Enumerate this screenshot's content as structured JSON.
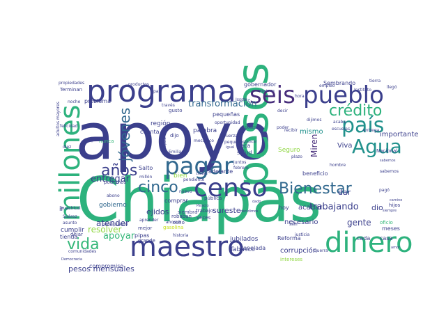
{
  "palette": {
    "background": "#ffffff",
    "dark_purple": "#472d7b",
    "indigo": "#3b3f8c",
    "blue": "#31688e",
    "teal": "#21918c",
    "green": "#35b779",
    "sea_green": "#2db27d",
    "lime": "#90d743",
    "yellow": "#c8e020"
  },
  "words": [
    {
      "text": "apoyo",
      "color": "#3b3f8c"
    },
    {
      "text": "Chiapas",
      "color": "#2db27d"
    },
    {
      "text": "programa",
      "color": "#3b3f8c"
    },
    {
      "text": "pesos",
      "color": "#2db27d"
    },
    {
      "text": "seis",
      "color": "#472d7b"
    },
    {
      "text": "pueblo",
      "color": "#3b3f8c"
    },
    {
      "text": "millones",
      "color": "#2db27d"
    },
    {
      "text": "pagar",
      "color": "#31688e"
    },
    {
      "text": "censo",
      "color": "#3b3f8c"
    },
    {
      "text": "maestro",
      "color": "#3b3f8c"
    },
    {
      "text": "dinero",
      "color": "#2db27d"
    },
    {
      "text": "país",
      "color": "#21918c"
    },
    {
      "text": "Agua",
      "color": "#21918c"
    },
    {
      "text": "crédito",
      "color": "#2db27d"
    },
    {
      "text": "Bienestar",
      "color": "#31688e"
    },
    {
      "text": "cinco",
      "color": "#31688e"
    },
    {
      "text": "años",
      "color": "#3b3f8c"
    },
    {
      "text": "jóvenes",
      "color": "#31688e"
    },
    {
      "text": "vida",
      "color": "#35b779"
    },
    {
      "text": "trabajando",
      "color": "#3b3f8c"
    },
    {
      "text": "transformación",
      "color": "#31688e"
    },
    {
      "text": "entregar",
      "color": "#3b3f8c"
    },
    {
      "text": "atender",
      "color": "#3b3f8c"
    },
    {
      "text": "apoyar",
      "color": "#35b779"
    },
    {
      "text": "resolver",
      "color": "#90d743"
    },
    {
      "text": "pesos mensuales",
      "color": "#3b3f8c"
    },
    {
      "text": "sureste",
      "color": "#3b3f8c"
    },
    {
      "text": "ejidos",
      "color": "#3b3f8c"
    },
    {
      "text": "gente",
      "color": "#3b3f8c"
    },
    {
      "text": "Miren",
      "color": "#472d7b"
    },
    {
      "text": "mismo",
      "color": "#21918c"
    },
    {
      "text": "dio",
      "color": "#3b3f8c"
    },
    {
      "text": "importante",
      "color": "#3b3f8c"
    },
    {
      "text": "Viva",
      "color": "#3b3f8c"
    },
    {
      "text": "dar",
      "color": "#3b3f8c"
    },
    {
      "text": "acabar",
      "color": "#3b3f8c"
    },
    {
      "text": "corrupción",
      "color": "#3b3f8c"
    },
    {
      "text": "necesario",
      "color": "#3b3f8c"
    },
    {
      "text": "tonelada",
      "color": "#3b3f8c"
    },
    {
      "text": "jubilados",
      "color": "#3b3f8c"
    },
    {
      "text": "Tabasco",
      "color": "#3b3f8c"
    },
    {
      "text": "región",
      "color": "#3b3f8c"
    },
    {
      "text": "palabra",
      "color": "#3b3f8c"
    },
    {
      "text": "cuenta",
      "color": "#3b3f8c"
    },
    {
      "text": "Salto",
      "color": "#3b3f8c"
    },
    {
      "text": "gobierno",
      "color": "#31688e"
    },
    {
      "text": "cumplir",
      "color": "#3b3f8c"
    },
    {
      "text": "tienda",
      "color": "#3b3f8c"
    },
    {
      "text": "compromiso",
      "color": "#3b3f8c"
    },
    {
      "text": "podemos",
      "color": "#3b3f8c"
    },
    {
      "text": "pipas",
      "color": "#3b3f8c"
    },
    {
      "text": "bien",
      "color": "#90d743"
    },
    {
      "text": "adelante",
      "color": "#3b3f8c"
    },
    {
      "text": "Seguro",
      "color": "#90d743"
    },
    {
      "text": "beca",
      "color": "#3b3f8c"
    },
    {
      "text": "salud",
      "color": "#3b3f8c"
    },
    {
      "text": "beneficio",
      "color": "#3b3f8c"
    },
    {
      "text": "gobernador",
      "color": "#3b3f8c"
    },
    {
      "text": "Sembrando",
      "color": "#3b3f8c"
    },
    {
      "text": "problema",
      "color": "#3b3f8c"
    },
    {
      "text": "pequeñas",
      "color": "#3b3f8c"
    },
    {
      "text": "Reforma",
      "color": "#3b3f8c"
    },
    {
      "text": "cada",
      "color": "#3b3f8c"
    },
    {
      "text": "casa",
      "color": "#3b3f8c"
    },
    {
      "text": "meses",
      "color": "#3b3f8c"
    },
    {
      "text": "hoy",
      "color": "#3b3f8c"
    },
    {
      "text": "comprar",
      "color": "#3b3f8c"
    },
    {
      "text": "trabajo",
      "color": "#3b3f8c"
    },
    {
      "text": "ocho",
      "color": "#3b3f8c"
    },
    {
      "text": "robaban",
      "color": "#3b3f8c"
    },
    {
      "text": "gasolina",
      "color": "#c8e020"
    },
    {
      "text": "mejor",
      "color": "#3b3f8c"
    },
    {
      "text": "grande",
      "color": "#3b3f8c"
    },
    {
      "text": "dejar",
      "color": "#3b3f8c"
    },
    {
      "text": "huachicol",
      "color": "#3b3f8c"
    },
    {
      "text": "nunca",
      "color": "#35b779"
    },
    {
      "text": "Terminan",
      "color": "#3b3f8c"
    },
    {
      "text": "propiedades",
      "color": "#3b3f8c"
    },
    {
      "text": "adultos mayores",
      "color": "#3b3f8c"
    },
    {
      "text": "felicidad",
      "color": "#3b3f8c"
    },
    {
      "text": "diez",
      "color": "#3b3f8c"
    },
    {
      "text": "Nacional",
      "color": "#3b3f8c"
    },
    {
      "text": "hijos",
      "color": "#3b3f8c"
    },
    {
      "text": "oficio",
      "color": "#35b779"
    },
    {
      "text": "hombre",
      "color": "#3b3f8c"
    },
    {
      "text": "intereses",
      "color": "#90d743"
    },
    {
      "text": "amor",
      "color": "#3b3f8c"
    },
    {
      "text": "sabemos",
      "color": "#3b3f8c"
    },
    {
      "text": "nuevo",
      "color": "#3b3f8c"
    },
    {
      "text": "pública",
      "color": "#3b3f8c"
    },
    {
      "text": "veces",
      "color": "#3b3f8c"
    },
    {
      "text": "Palacio",
      "color": "#3b3f8c"
    },
    {
      "text": "ciudad",
      "color": "#3b3f8c"
    },
    {
      "text": "justicia",
      "color": "#3b3f8c"
    },
    {
      "text": "Emiliano",
      "color": "#3b3f8c"
    },
    {
      "text": "Apóstol",
      "color": "#3b3f8c"
    },
    {
      "text": "fuerza",
      "color": "#3b3f8c"
    },
    {
      "text": "mecánico",
      "color": "#3b3f8c"
    },
    {
      "text": "pequeños",
      "color": "#3b3f8c"
    },
    {
      "text": "recibir",
      "color": "#3b3f8c"
    },
    {
      "text": "hora",
      "color": "#3b3f8c"
    },
    {
      "text": "Issste",
      "color": "#3b3f8c"
    },
    {
      "text": "dijimos",
      "color": "#3b3f8c"
    },
    {
      "text": "decir",
      "color": "#3b3f8c"
    },
    {
      "text": "través",
      "color": "#3b3f8c"
    },
    {
      "text": "gusto",
      "color": "#3b3f8c"
    },
    {
      "text": "dijo",
      "color": "#3b3f8c"
    },
    {
      "text": "pendiente",
      "color": "#3b3f8c"
    },
    {
      "text": "juntos",
      "color": "#3b3f8c"
    },
    {
      "text": "febrero",
      "color": "#3b3f8c"
    },
    {
      "text": "tierra",
      "color": "#3b3f8c"
    },
    {
      "text": "dado",
      "color": "#3b3f8c"
    },
    {
      "text": "poder",
      "color": "#3b3f8c"
    },
    {
      "text": "paz",
      "color": "#3b3f8c"
    },
    {
      "text": "entrega",
      "color": "#3b3f8c"
    },
    {
      "text": "plazo",
      "color": "#3b3f8c"
    },
    {
      "text": "empleo",
      "color": "#3b3f8c"
    },
    {
      "text": "acaba",
      "color": "#3b3f8c"
    },
    {
      "text": "escuelas",
      "color": "#3b3f8c"
    },
    {
      "text": "pagó",
      "color": "#3b3f8c"
    },
    {
      "text": "productos",
      "color": "#3b3f8c"
    },
    {
      "text": "noche",
      "color": "#3b3f8c"
    },
    {
      "text": "llegó",
      "color": "#3b3f8c"
    },
    {
      "text": "millón",
      "color": "#3b3f8c"
    },
    {
      "text": "aprender",
      "color": "#3b3f8c"
    },
    {
      "text": "siembra",
      "color": "#3b3f8c"
    },
    {
      "text": "presupuesto",
      "color": "#3b3f8c"
    },
    {
      "text": "comunidades",
      "color": "#3b3f8c"
    },
    {
      "text": "Democracia",
      "color": "#3b3f8c"
    },
    {
      "text": "Suárez",
      "color": "#3b3f8c"
    },
    {
      "text": "asunto",
      "color": "#3b3f8c"
    },
    {
      "text": "Zapata",
      "color": "#3b3f8c"
    },
    {
      "text": "igual",
      "color": "#3b3f8c"
    },
    {
      "text": "Guerra",
      "color": "#3b3f8c"
    },
    {
      "text": "Instituto",
      "color": "#3b3f8c"
    },
    {
      "text": "quieren",
      "color": "#3b3f8c"
    },
    {
      "text": "abono",
      "color": "#3b3f8c"
    },
    {
      "text": "salir",
      "color": "#3b3f8c"
    },
    {
      "text": "ahorrar",
      "color": "#3b3f8c"
    },
    {
      "text": "sabemos",
      "color": "#3b3f8c"
    },
    {
      "text": "ir",
      "color": "#3b3f8c"
    },
    {
      "text": "historia",
      "color": "#3b3f8c"
    },
    {
      "text": "seguimos",
      "color": "#3b3f8c"
    },
    {
      "text": "decidimos",
      "color": "#3b3f8c"
    },
    {
      "text": "oportunidad",
      "color": "#3b3f8c"
    },
    {
      "text": "buscar",
      "color": "#3b3f8c"
    },
    {
      "text": "camino",
      "color": "#3b3f8c"
    },
    {
      "text": "siempre",
      "color": "#3b3f8c"
    }
  ]
}
